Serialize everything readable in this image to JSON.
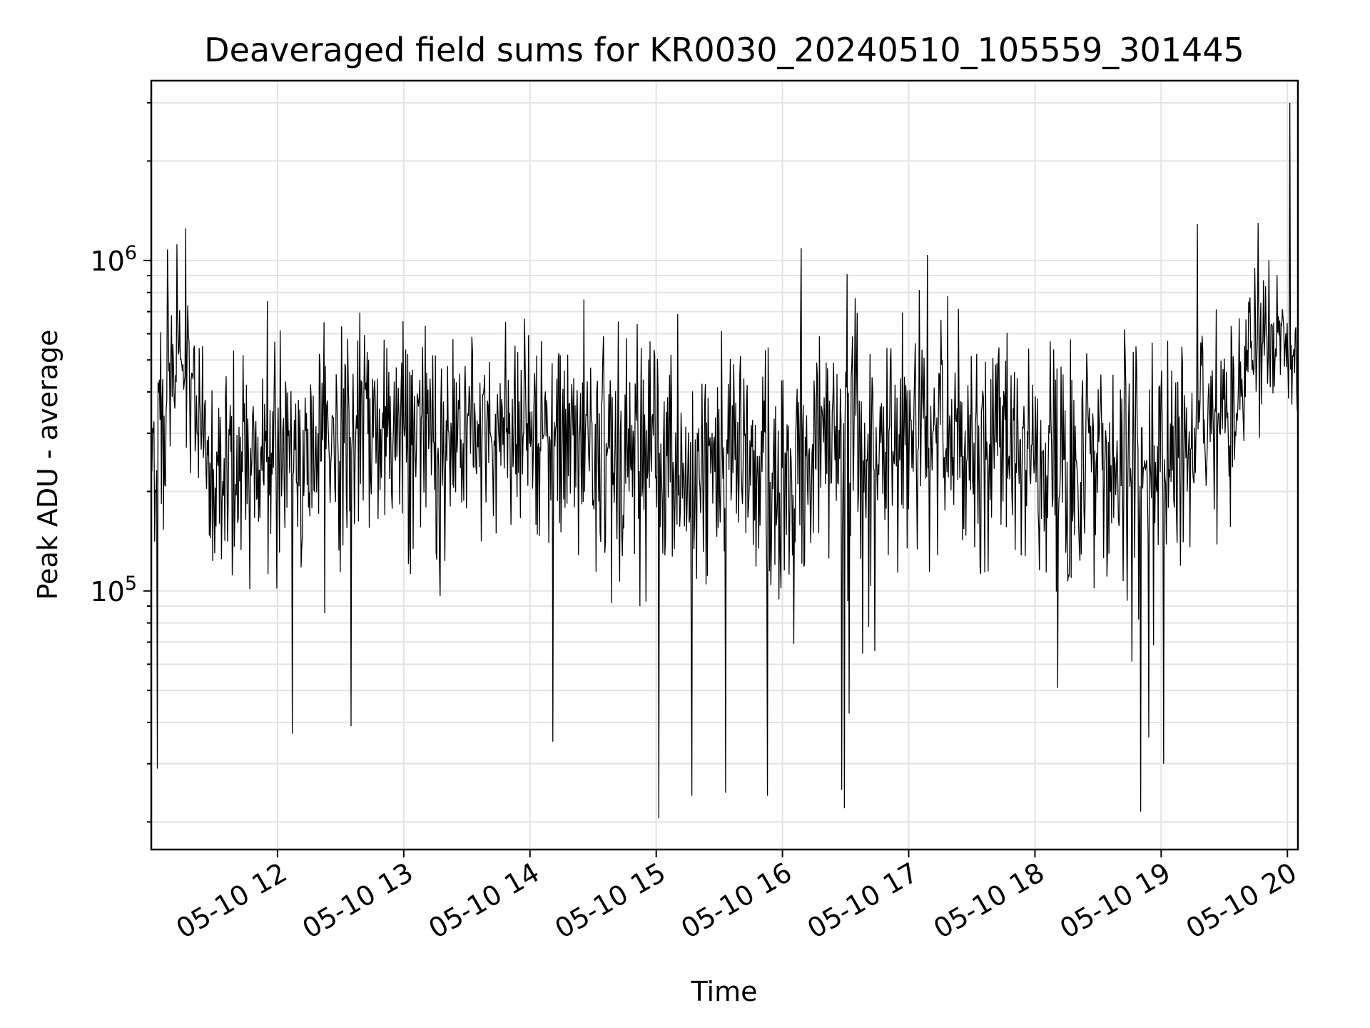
{
  "chart_data": {
    "type": "line",
    "title": "Deaveraged field sums for KR0030_20240510_105559_301445",
    "xlabel": "Time",
    "ylabel": "Peak ADU - average",
    "y_scale": "log",
    "ylim": [
      16500,
      3500000
    ],
    "xlim": [
      "2024-05-10 11:00",
      "2024-05-10 20:05"
    ],
    "x_ticks": [
      "05-10 12",
      "05-10 13",
      "05-10 14",
      "05-10 15",
      "05-10 16",
      "05-10 17",
      "05-10 18",
      "05-10 19",
      "05-10 20"
    ],
    "x_tick_hours": [
      12,
      13,
      14,
      15,
      16,
      17,
      18,
      19,
      20
    ],
    "y_ticks": [
      {
        "value": 100000,
        "base": "10",
        "exp": "5"
      },
      {
        "value": 1000000,
        "base": "10",
        "exp": "6"
      }
    ],
    "grid": true,
    "line_color": "#000000",
    "series": [
      {
        "envelope_hours": [
          11.0,
          11.25,
          11.5,
          12.0,
          13.0,
          14.0,
          15.0,
          16.0,
          17.0,
          18.0,
          18.5,
          19.0,
          19.5,
          19.75,
          20.0,
          20.08
        ],
        "envelope_median": [
          260000,
          520000,
          230000,
          270000,
          310000,
          290000,
          260000,
          220000,
          300000,
          270000,
          230000,
          230000,
          380000,
          560000,
          560000,
          520000
        ],
        "envelope_spread_decades": [
          0.28,
          0.22,
          0.26,
          0.28,
          0.28,
          0.28,
          0.3,
          0.32,
          0.29,
          0.28,
          0.36,
          0.34,
          0.24,
          0.2,
          0.16,
          0.16
        ],
        "spikes": [
          {
            "hour": 11.05,
            "value": 29000
          },
          {
            "hour": 11.27,
            "value": 1250000
          },
          {
            "hour": 11.13,
            "value": 1080000
          },
          {
            "hour": 12.12,
            "value": 37000
          },
          {
            "hour": 12.58,
            "value": 39000
          },
          {
            "hour": 14.18,
            "value": 35000
          },
          {
            "hour": 15.02,
            "value": 20500
          },
          {
            "hour": 15.28,
            "value": 24000
          },
          {
            "hour": 15.55,
            "value": 24500
          },
          {
            "hour": 15.88,
            "value": 24000
          },
          {
            "hour": 16.15,
            "value": 1090000
          },
          {
            "hour": 16.47,
            "value": 25000
          },
          {
            "hour": 16.49,
            "value": 22000
          },
          {
            "hour": 17.15,
            "value": 1040000
          },
          {
            "hour": 18.84,
            "value": 21500
          },
          {
            "hour": 18.9,
            "value": 36000
          },
          {
            "hour": 19.02,
            "value": 30000
          },
          {
            "hour": 19.77,
            "value": 1300000
          },
          {
            "hour": 20.02,
            "value": 3000000
          }
        ]
      }
    ]
  }
}
